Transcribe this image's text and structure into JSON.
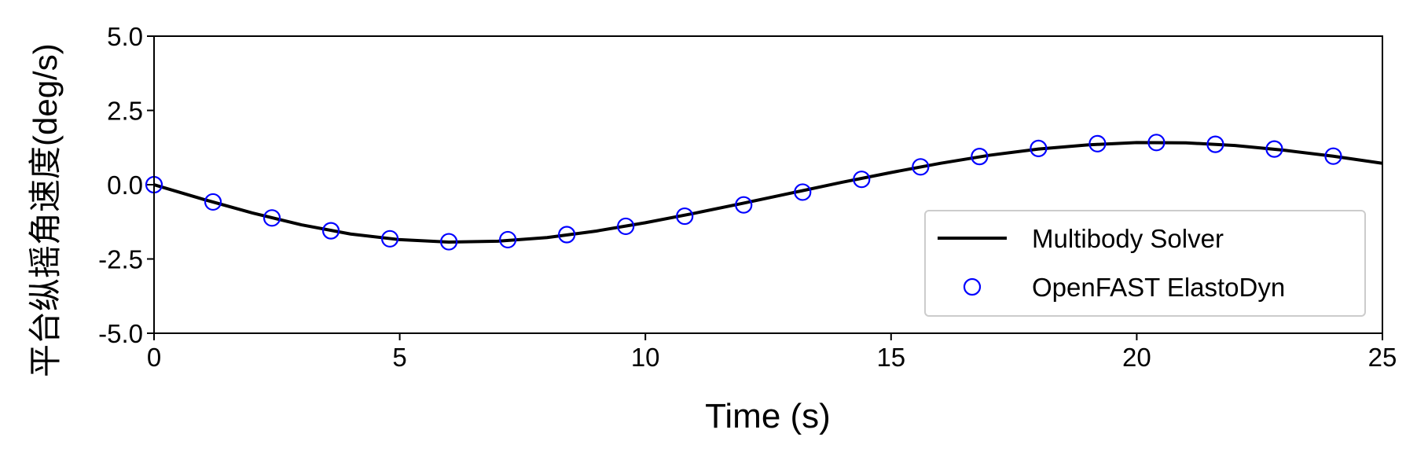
{
  "chart_data": {
    "type": "line",
    "xlabel": "Time (s)",
    "ylabel": "平台纵摇角速度(deg/s)",
    "xlim": [
      0,
      25
    ],
    "xticks": [
      0,
      5,
      10,
      15,
      20,
      25
    ],
    "ylim": [
      -5,
      5
    ],
    "yticks": [
      {
        "value": -5,
        "label": "-5.0"
      },
      {
        "value": -2.5,
        "label": "-2.5"
      },
      {
        "value": 0,
        "label": "0.0"
      },
      {
        "value": 2.5,
        "label": "2.5"
      },
      {
        "value": 5,
        "label": "5.0"
      }
    ],
    "legend": "lower right",
    "series": [
      {
        "name": "Multibody Solver",
        "color": "#000000",
        "style": "line",
        "x": [
          0,
          1,
          2,
          3,
          4,
          5,
          6,
          7,
          8,
          9,
          10,
          11,
          12,
          13,
          14,
          15,
          16,
          17,
          18,
          19,
          20,
          21,
          22,
          23,
          24,
          25
        ],
        "values": [
          0,
          -0.49,
          -0.95,
          -1.35,
          -1.66,
          -1.85,
          -1.93,
          -1.9,
          -1.78,
          -1.56,
          -1.28,
          -0.96,
          -0.62,
          -0.27,
          0.08,
          0.41,
          0.72,
          0.99,
          1.2,
          1.34,
          1.42,
          1.41,
          1.32,
          1.16,
          0.96,
          0.72
        ]
      },
      {
        "name": "OpenFAST ElastoDyn",
        "color": "#0000ff",
        "style": "scatter",
        "x": [
          0,
          1.2,
          2.4,
          3.6,
          4.8,
          6.0,
          7.2,
          8.4,
          9.6,
          10.8,
          12.0,
          13.2,
          14.4,
          15.6,
          16.8,
          18.0,
          19.2,
          20.4,
          21.6,
          22.8,
          24.0
        ],
        "values": [
          0,
          -0.58,
          -1.12,
          -1.55,
          -1.82,
          -1.92,
          -1.85,
          -1.68,
          -1.4,
          -1.06,
          -0.68,
          -0.25,
          0.18,
          0.6,
          0.95,
          1.22,
          1.38,
          1.42,
          1.36,
          1.2,
          0.96
        ]
      }
    ]
  }
}
